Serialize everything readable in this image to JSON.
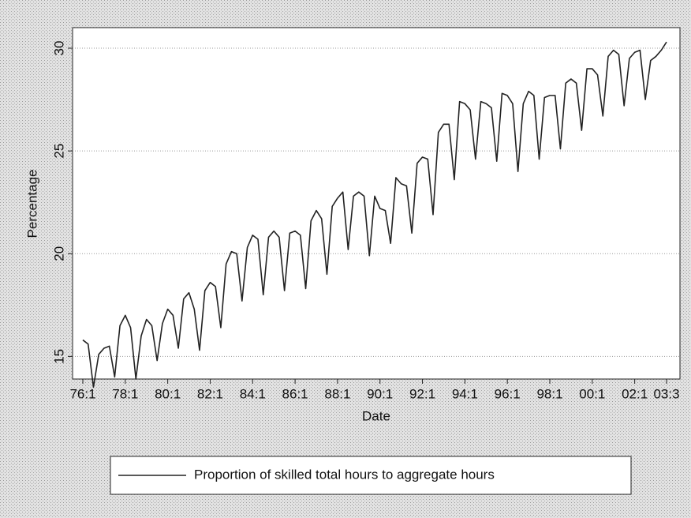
{
  "chart_data": {
    "type": "line",
    "ylabel": "Percentage",
    "xlabel": "Date",
    "categories": [
      "76:1",
      null,
      null,
      null,
      null,
      null,
      null,
      null,
      "78:1",
      null,
      null,
      null,
      null,
      null,
      null,
      null,
      "80:1",
      null,
      null,
      null,
      null,
      null,
      null,
      null,
      "82:1",
      null,
      null,
      null,
      null,
      null,
      null,
      null,
      "84:1",
      null,
      null,
      null,
      null,
      null,
      null,
      null,
      "86:1",
      null,
      null,
      null,
      null,
      null,
      null,
      null,
      "88:1",
      null,
      null,
      null,
      null,
      null,
      null,
      null,
      "90:1",
      null,
      null,
      null,
      null,
      null,
      null,
      null,
      "92:1",
      null,
      null,
      null,
      null,
      null,
      null,
      null,
      "94:1",
      null,
      null,
      null,
      null,
      null,
      null,
      null,
      "96:1",
      null,
      null,
      null,
      null,
      null,
      null,
      null,
      "98:1",
      null,
      null,
      null,
      null,
      null,
      null,
      null,
      "00:1",
      null,
      null,
      null,
      null,
      null,
      null,
      null,
      "02:1",
      null,
      null,
      null,
      null,
      null,
      "03:3"
    ],
    "series": [
      {
        "name": "Proportion of skilled total hours to aggregate hours",
        "color": "#222222",
        "values": [
          15.8,
          15.6,
          13.5,
          15.1,
          15.4,
          15.5,
          14.0,
          16.5,
          17.0,
          16.4,
          13.9,
          16.0,
          16.8,
          16.5,
          14.8,
          16.6,
          17.3,
          17.0,
          15.4,
          17.8,
          18.1,
          17.3,
          15.3,
          18.2,
          18.6,
          18.4,
          16.4,
          19.5,
          20.1,
          20.0,
          17.7,
          20.3,
          20.9,
          20.7,
          18.0,
          20.8,
          21.1,
          20.8,
          18.2,
          21.0,
          21.1,
          20.9,
          18.3,
          21.6,
          22.1,
          21.7,
          19.0,
          22.3,
          22.7,
          23.0,
          20.2,
          22.8,
          23.0,
          22.8,
          19.9,
          22.8,
          22.2,
          22.1,
          20.5,
          23.7,
          23.4,
          23.3,
          21.0,
          24.4,
          24.7,
          24.6,
          21.9,
          25.9,
          26.3,
          26.3,
          23.6,
          27.4,
          27.3,
          27.0,
          24.6,
          27.4,
          27.3,
          27.1,
          24.5,
          27.8,
          27.7,
          27.3,
          24.0,
          27.3,
          27.9,
          27.7,
          24.6,
          27.6,
          27.7,
          27.7,
          25.1,
          28.3,
          28.5,
          28.3,
          26.0,
          29.0,
          29.0,
          28.7,
          26.7,
          29.6,
          29.9,
          29.7,
          27.2,
          29.5,
          29.8,
          29.9,
          27.5,
          29.4,
          29.6,
          29.9,
          30.3
        ]
      }
    ],
    "ylim": [
      13.9,
      31.0
    ],
    "yticks": [
      15,
      20,
      25,
      30
    ],
    "grid": true
  }
}
